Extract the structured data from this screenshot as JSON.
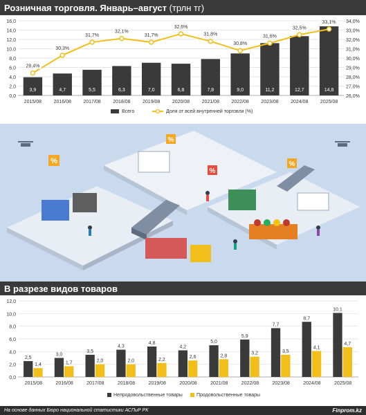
{
  "header1": {
    "title": "Розничная торговля. Январь–август",
    "unit": "(трлн тг)"
  },
  "header2": {
    "title": "В разрезе видов товаров"
  },
  "chart_data": [
    {
      "type": "bar",
      "categories": [
        "2015/08",
        "2016/08",
        "2017/08",
        "2018/08",
        "2019/08",
        "2020/08",
        "2021/08",
        "2022/08",
        "2023/08",
        "2024/08",
        "2025/08"
      ],
      "series": [
        {
          "name": "Всего",
          "type": "bar",
          "color": "#3a3a3a",
          "values": [
            3.9,
            4.7,
            5.5,
            6.3,
            7.0,
            6.8,
            7.8,
            9.0,
            11.2,
            12.7,
            14.8
          ],
          "labels": [
            "3,9",
            "4,7",
            "5,5",
            "6,3",
            "7,0",
            "6,8",
            "7,8",
            "9,0",
            "11,2",
            "12,7",
            "14,8"
          ]
        },
        {
          "name": "Доля от всей внутренней торговли (%)",
          "type": "line",
          "color": "#f2bf1a",
          "axis": "right",
          "values": [
            28.4,
            30.3,
            31.7,
            32.1,
            31.7,
            32.6,
            31.8,
            30.8,
            31.6,
            32.5,
            33.1
          ],
          "labels": [
            "28,4%",
            "30,3%",
            "31,7%",
            "32,1%",
            "31,7%",
            "32,6%",
            "31,8%",
            "30,8%",
            "31,6%",
            "32,5%",
            "33,1%"
          ]
        }
      ],
      "ylim": [
        0,
        16
      ],
      "y_ticks": [
        "0,0",
        "2,0",
        "4,0",
        "6,0",
        "8,0",
        "10,0",
        "12,0",
        "14,0",
        "16,0"
      ],
      "y2lim": [
        26,
        34
      ],
      "y2_ticks": [
        "26,0%",
        "27,0%",
        "28,0%",
        "29,0%",
        "30,0%",
        "31,0%",
        "32,0%",
        "33,0%",
        "34,0%"
      ],
      "grid": true,
      "legend": "bottom"
    },
    {
      "type": "bar",
      "categories": [
        "2015/08",
        "2016/08",
        "2017/08",
        "2018/08",
        "2019/08",
        "2020/08",
        "2021/08",
        "2022/08",
        "2023/08",
        "2024/08",
        "2025/08"
      ],
      "series": [
        {
          "name": "Непродовольственные товары",
          "color": "#3a3a3a",
          "values": [
            2.5,
            3.0,
            3.5,
            4.3,
            4.8,
            4.2,
            5.0,
            5.9,
            7.7,
            8.7,
            10.1
          ],
          "labels": [
            "2,5",
            "3,0",
            "3,5",
            "4,3",
            "4,8",
            "4,2",
            "5,0",
            "5,9",
            "7,7",
            "8,7",
            "10,1"
          ]
        },
        {
          "name": "Продовольственные товары",
          "color": "#f2bf1a",
          "values": [
            1.4,
            1.7,
            2.0,
            2.0,
            2.2,
            2.6,
            2.8,
            3.2,
            3.5,
            4.1,
            4.7
          ],
          "labels": [
            "1,4",
            "1,7",
            "2,0",
            "2,0",
            "2,2",
            "2,6",
            "2,8",
            "3,2",
            "3,5",
            "4,1",
            "4,7"
          ]
        }
      ],
      "ylim": [
        0,
        12
      ],
      "y_ticks": [
        "0,0",
        "2,0",
        "4,0",
        "6,0",
        "8,0",
        "10,0",
        "12,0"
      ],
      "grid": true,
      "legend": "bottom"
    }
  ],
  "illustration": {
    "icon": "shopping-mall-isometric-illustration",
    "sign_glyph": "%"
  },
  "footer": {
    "source": "На основе данных Бюро национальной статистики АСПиР РК",
    "brand": "Finprom.kz"
  }
}
